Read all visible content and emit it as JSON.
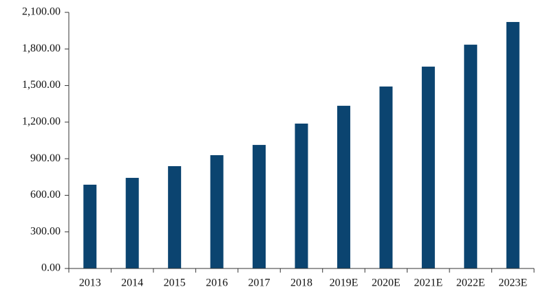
{
  "chart_data": {
    "type": "bar",
    "categories": [
      "2013",
      "2014",
      "2015",
      "2016",
      "2017",
      "2018",
      "2019E",
      "2020E",
      "2021E",
      "2022E",
      "2023E"
    ],
    "values": [
      687,
      743,
      839,
      929,
      1013,
      1188,
      1334,
      1492,
      1655,
      1835,
      2021
    ],
    "color": "#0b4470",
    "ylim": [
      0,
      2100
    ],
    "yticks": [
      {
        "value": 0,
        "label": "0.00"
      },
      {
        "value": 300,
        "label": "300.00"
      },
      {
        "value": 600,
        "label": "600.00"
      },
      {
        "value": 900,
        "label": "900.00"
      },
      {
        "value": 1200,
        "label": "1,200.00"
      },
      {
        "value": 1500,
        "label": "1,500.00"
      },
      {
        "value": 1800,
        "label": "1,800.00"
      },
      {
        "value": 2100,
        "label": "2,100.00"
      }
    ],
    "grid": false
  }
}
